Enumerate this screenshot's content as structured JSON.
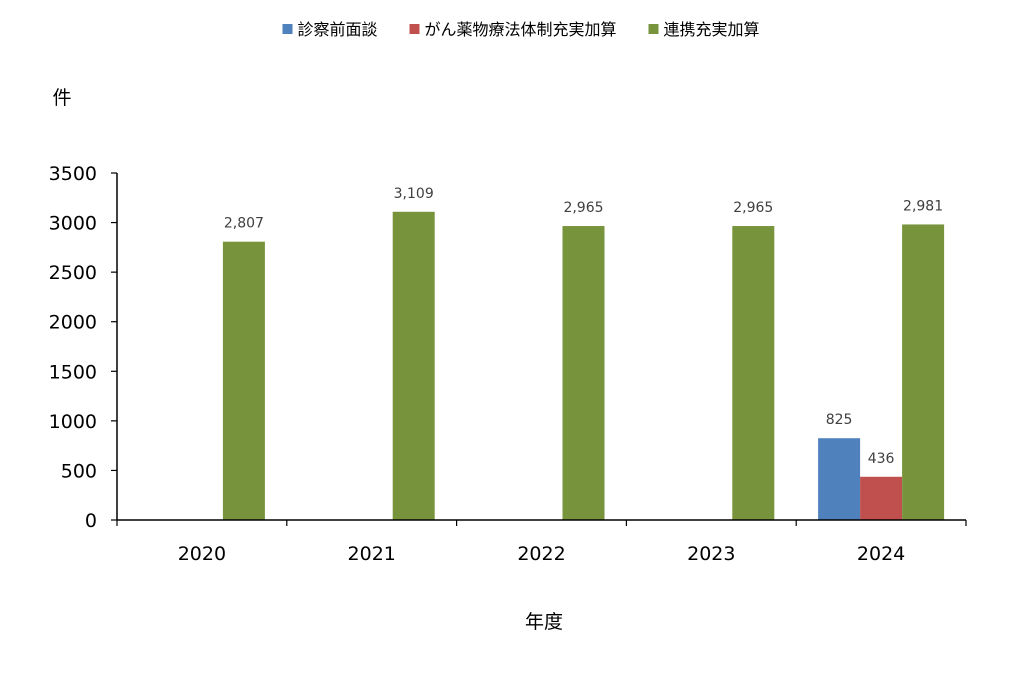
{
  "chart_data": {
    "type": "bar",
    "title": "",
    "xlabel": "年度",
    "ylabel": "件",
    "categories": [
      "2020",
      "2021",
      "2022",
      "2023",
      "2024"
    ],
    "ylim": [
      0,
      3500
    ],
    "yticks": [
      0,
      500,
      1000,
      1500,
      2000,
      2500,
      3000,
      3500
    ],
    "grid": false,
    "legend_position": "top",
    "series": [
      {
        "name": "診察前面談",
        "color": "#4f81bd",
        "values": [
          null,
          null,
          null,
          null,
          825
        ],
        "labels": [
          "",
          "",
          "",
          "",
          "825"
        ]
      },
      {
        "name": "がん薬物療法体制充実加算",
        "color": "#c0504d",
        "values": [
          null,
          null,
          null,
          null,
          436
        ],
        "labels": [
          "",
          "",
          "",
          "",
          "436"
        ]
      },
      {
        "name": "連携充実加算",
        "color": "#77933c",
        "values": [
          2807,
          3109,
          2965,
          2965,
          2981
        ],
        "labels": [
          "2,807",
          "3,109",
          "2,965",
          "2,965",
          "2,981"
        ]
      }
    ]
  }
}
